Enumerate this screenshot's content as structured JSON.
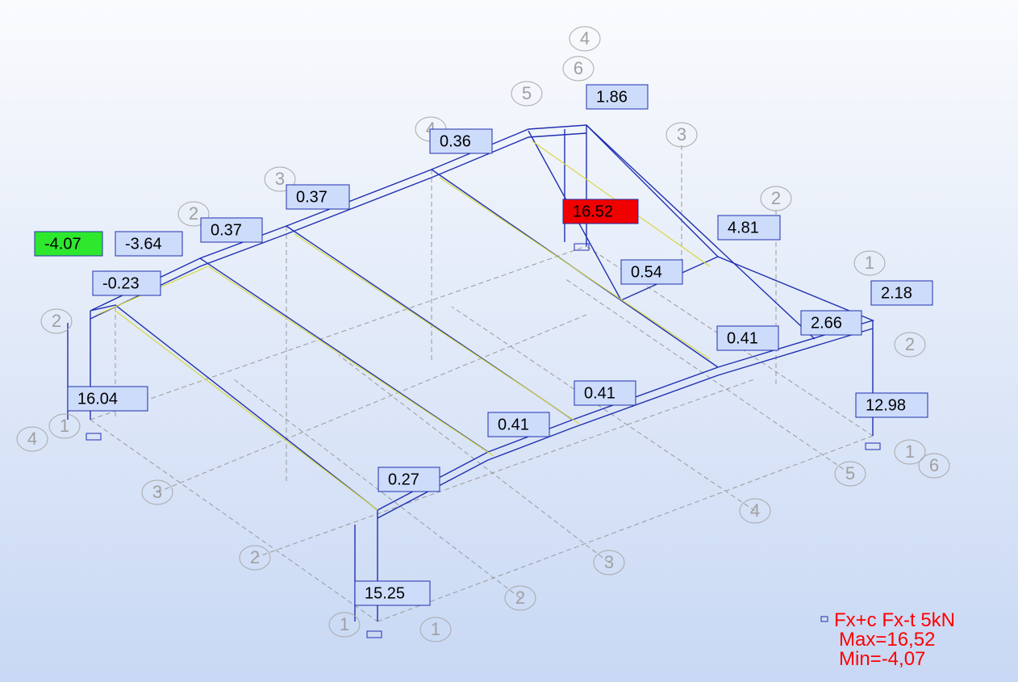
{
  "labels": [
    {
      "text": "-4.07",
      "fill": "#2ee82e"
    },
    {
      "text": "-3.64"
    },
    {
      "text": "0.37"
    },
    {
      "text": "0.37"
    },
    {
      "text": "0.36"
    },
    {
      "text": "1.86"
    },
    {
      "text": "16.52",
      "fill": "#f00000"
    },
    {
      "text": "4.81"
    },
    {
      "text": "0.54"
    },
    {
      "text": "-0.23"
    },
    {
      "text": "2.18"
    },
    {
      "text": "2.66"
    },
    {
      "text": "0.41"
    },
    {
      "text": "16.04"
    },
    {
      "text": "0.41"
    },
    {
      "text": "12.98"
    },
    {
      "text": "0.41"
    },
    {
      "text": "0.27"
    },
    {
      "text": "15.25"
    }
  ],
  "grid_bubbles": [
    "4",
    "6",
    "5",
    "4",
    "3",
    "3",
    "2",
    "2",
    "1",
    "2",
    "2",
    "1",
    "4",
    "1",
    "6",
    "5",
    "3",
    "4",
    "2",
    "3",
    "2",
    "1",
    "1"
  ],
  "legend": {
    "line1": "Fx+c Fx-t  5kN",
    "line2": "Max=16,52",
    "line3": "Min=-4,07"
  }
}
